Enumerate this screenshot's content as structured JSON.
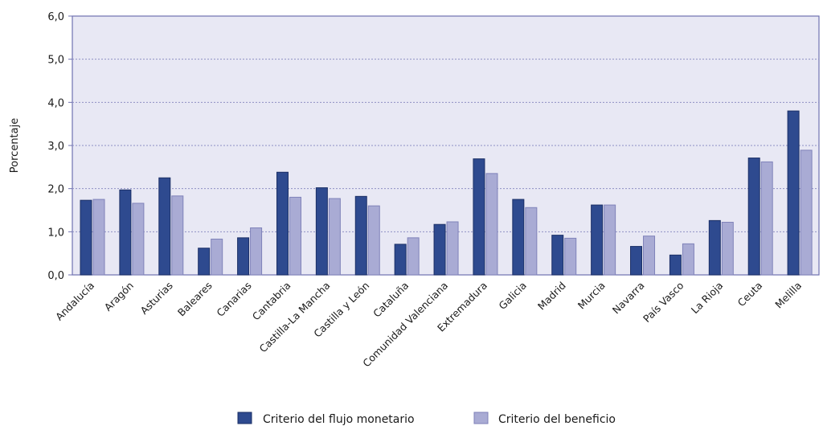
{
  "chart_data": {
    "type": "bar",
    "ylabel": "Porcentaje",
    "ylim": [
      0,
      6
    ],
    "yticks": [
      "0,0",
      "1,0",
      "2,0",
      "3,0",
      "4,0",
      "5,0",
      "6,0"
    ],
    "grid": true,
    "legend_position": "bottom",
    "categories": [
      "Andalucía",
      "Aragón",
      "Asturias",
      "Baleares",
      "Canarias",
      "Cantabria",
      "Castilla-La Mancha",
      "Castilla y León",
      "Cataluña",
      "Comunidad Valenciana",
      "Extremadura",
      "Galicia",
      "Madrid",
      "Murcia",
      "Navarra",
      "País Vasco",
      "La Rioja",
      "Ceuta",
      "Melilla"
    ],
    "series": [
      {
        "name": "Criterio del flujo monetario",
        "color": "#2e4a8f",
        "values": [
          1.73,
          1.97,
          2.25,
          0.62,
          0.86,
          2.38,
          2.02,
          1.82,
          0.71,
          1.17,
          2.69,
          1.75,
          0.92,
          1.62,
          0.66,
          0.46,
          1.26,
          2.71,
          3.8
        ]
      },
      {
        "name": "Criterio del beneficio",
        "color": "#a9abd4",
        "values": [
          1.75,
          1.66,
          1.83,
          0.83,
          1.09,
          1.8,
          1.77,
          1.6,
          0.86,
          1.23,
          2.35,
          1.56,
          0.85,
          1.62,
          0.9,
          0.72,
          1.22,
          2.62,
          2.89
        ]
      }
    ]
  }
}
